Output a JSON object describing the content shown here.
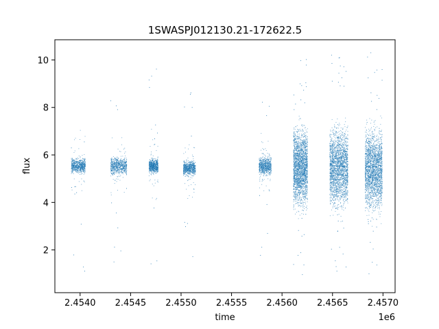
{
  "chart_data": {
    "type": "scatter",
    "title": "1SWASPJ012130.21-172622.5",
    "xlabel": "time",
    "ylabel": "flux",
    "x_offset_label": "1e6",
    "xlim": [
      2.45375,
      2.45712
    ],
    "ylim": [
      0.2,
      10.85
    ],
    "x_ticks": [
      2.454,
      2.4545,
      2.455,
      2.4555,
      2.456,
      2.4565,
      2.457
    ],
    "x_tick_labels": [
      "2.4540",
      "2.4545",
      "2.4550",
      "2.4555",
      "2.4560",
      "2.4565",
      "2.4570"
    ],
    "y_ticks": [
      2,
      4,
      6,
      8,
      10
    ],
    "y_tick_labels": [
      "2",
      "4",
      "6",
      "8",
      "10"
    ],
    "grid": false,
    "marker_color": "#1f77b4",
    "segments": [
      {
        "x_start": 2.45391,
        "x_end": 2.45405,
        "center": 5.55,
        "core_spread": 0.5,
        "max": 8.8,
        "min": 0.7
      },
      {
        "x_start": 2.4543,
        "x_end": 2.45446,
        "center": 5.55,
        "core_spread": 0.6,
        "max": 8.5,
        "min": 0.8
      },
      {
        "x_start": 2.45468,
        "x_end": 2.45477,
        "center": 5.55,
        "core_spread": 0.5,
        "max": 10.1,
        "min": 1.3
      },
      {
        "x_start": 2.45502,
        "x_end": 2.45514,
        "center": 5.45,
        "core_spread": 0.5,
        "max": 9.7,
        "min": 1.1
      },
      {
        "x_start": 2.45577,
        "x_end": 2.45589,
        "center": 5.55,
        "core_spread": 0.6,
        "max": 9.7,
        "min": 1.6
      },
      {
        "x_start": 2.45611,
        "x_end": 2.45625,
        "center": 5.5,
        "core_spread": 1.5,
        "max": 10.4,
        "min": 0.7
      },
      {
        "x_start": 2.45647,
        "x_end": 2.45665,
        "center": 5.5,
        "core_spread": 1.5,
        "max": 10.4,
        "min": 0.7
      },
      {
        "x_start": 2.45682,
        "x_end": 2.45699,
        "center": 5.4,
        "core_spread": 1.5,
        "max": 10.4,
        "min": 0.7
      }
    ]
  }
}
